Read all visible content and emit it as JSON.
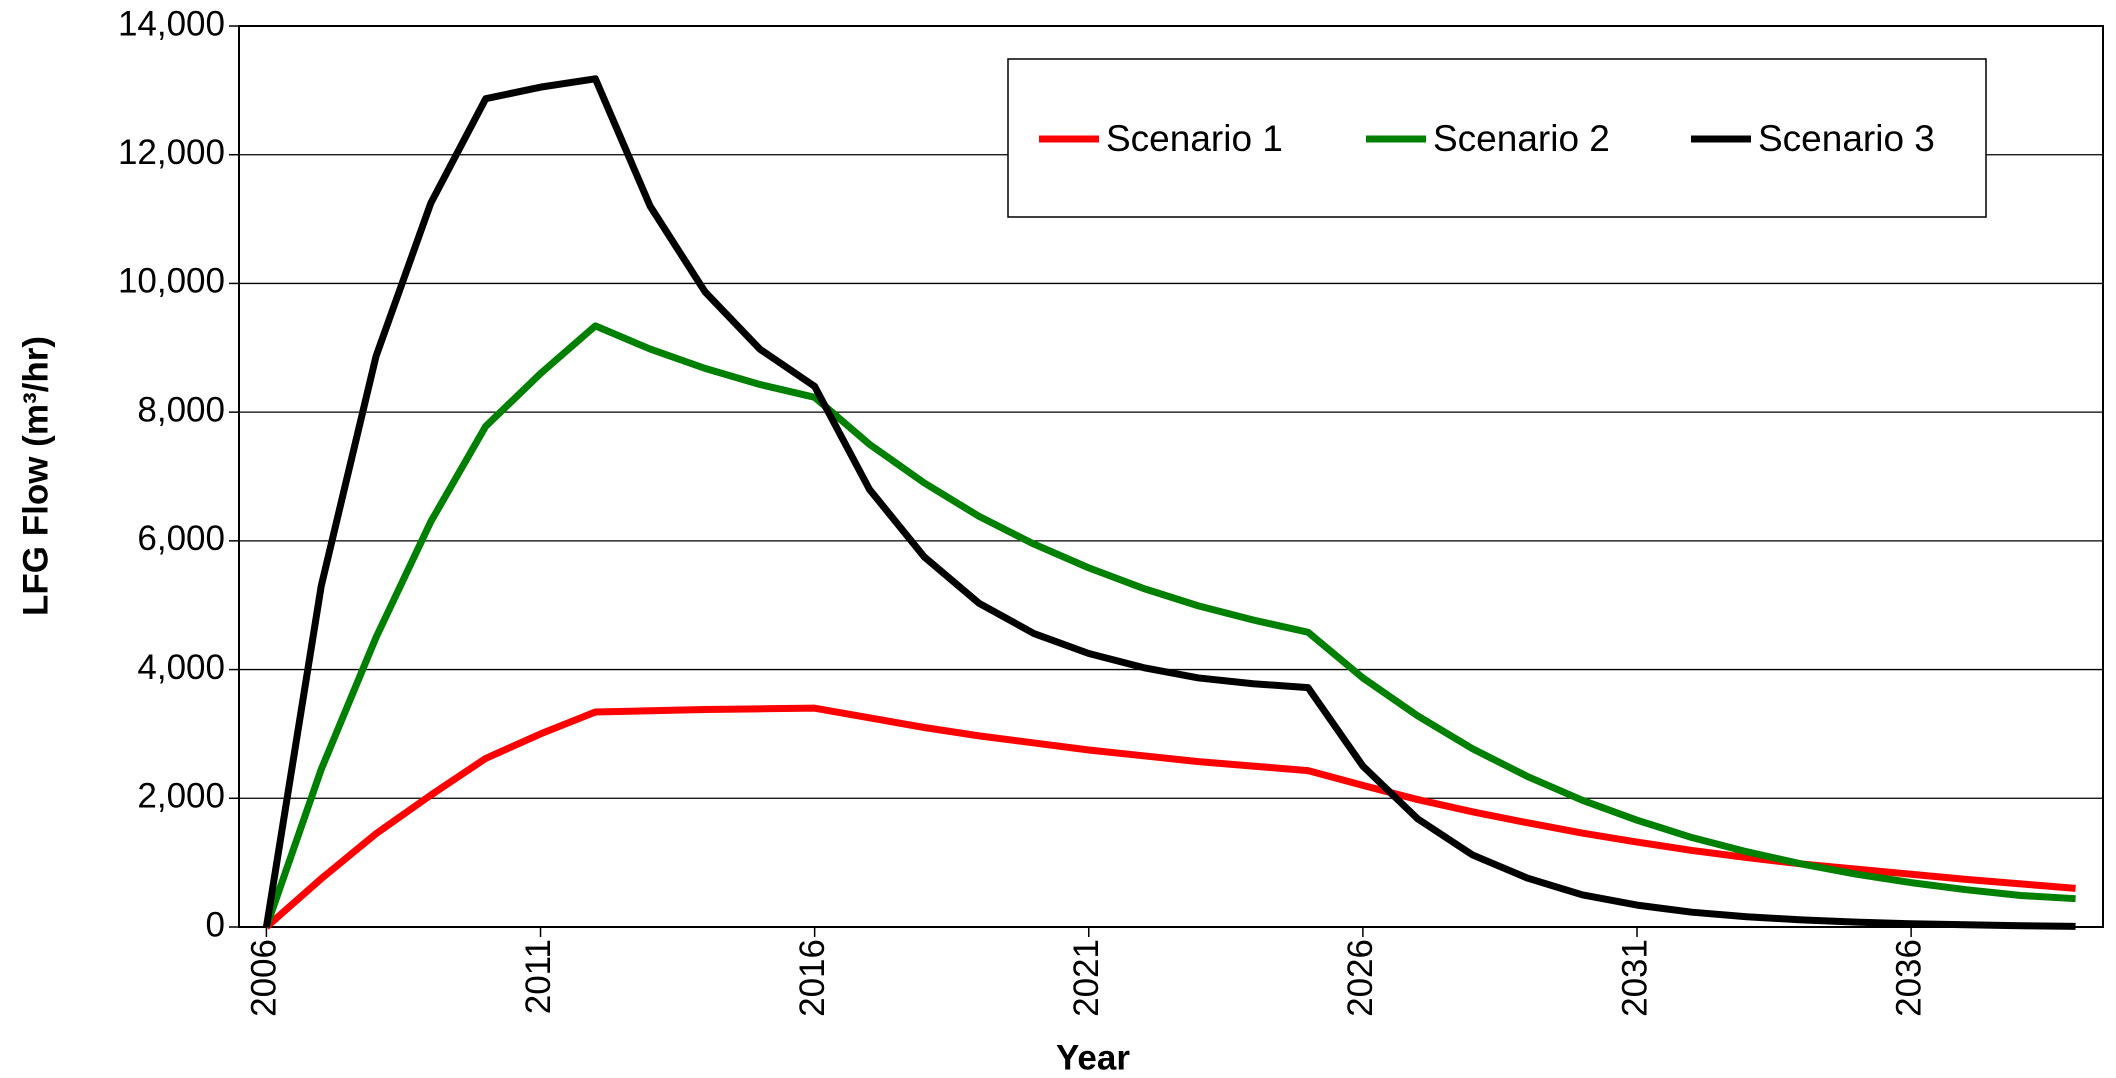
{
  "chart_data": {
    "type": "line",
    "xlabel": "Year",
    "ylabel": "LFG Flow (m³/hr)",
    "x": [
      2006,
      2007,
      2008,
      2009,
      2010,
      2011,
      2012,
      2013,
      2014,
      2015,
      2016,
      2017,
      2018,
      2019,
      2020,
      2021,
      2022,
      2023,
      2024,
      2025,
      2026,
      2027,
      2028,
      2029,
      2030,
      2031,
      2032,
      2033,
      2034,
      2035,
      2036,
      2037,
      2038,
      2039
    ],
    "series": [
      {
        "name": "Scenario 1",
        "color": "#ff0000",
        "values": [
          0,
          750,
          1450,
          2050,
          2620,
          3000,
          3340,
          3360,
          3380,
          3390,
          3400,
          3250,
          3100,
          2970,
          2860,
          2750,
          2660,
          2570,
          2500,
          2430,
          2200,
          1980,
          1790,
          1620,
          1460,
          1320,
          1190,
          1080,
          980,
          900,
          820,
          740,
          670,
          600
        ]
      },
      {
        "name": "Scenario 2",
        "color": "#008000",
        "values": [
          0,
          2450,
          4500,
          6300,
          7780,
          8600,
          9340,
          8980,
          8680,
          8430,
          8230,
          7500,
          6900,
          6380,
          5950,
          5580,
          5260,
          4990,
          4770,
          4580,
          3870,
          3280,
          2770,
          2340,
          1970,
          1660,
          1390,
          1170,
          980,
          820,
          690,
          580,
          490,
          440
        ]
      },
      {
        "name": "Scenario 3",
        "color": "#000000",
        "values": [
          0,
          5300,
          8870,
          11250,
          12870,
          13050,
          13180,
          11200,
          9870,
          8980,
          8400,
          6800,
          5750,
          5030,
          4560,
          4250,
          4030,
          3870,
          3780,
          3720,
          2500,
          1680,
          1120,
          760,
          500,
          340,
          230,
          160,
          110,
          75,
          50,
          35,
          20,
          10
        ]
      }
    ],
    "xlim": [
      2005.5,
      2039.5
    ],
    "xticks": [
      2006,
      2011,
      2016,
      2021,
      2026,
      2031,
      2036
    ],
    "ylim": [
      0,
      14000
    ],
    "yticks": [
      0,
      {
        "value": 2000,
        "label": "2,000"
      },
      {
        "value": 4000,
        "label": "4,000"
      },
      {
        "value": 6000,
        "label": "6,000"
      },
      {
        "value": 8000,
        "label": "8,000"
      },
      {
        "value": 10000,
        "label": "10,000"
      },
      {
        "value": 12000,
        "label": "12,000"
      },
      {
        "value": 14000,
        "label": "14,000"
      }
    ],
    "grid": true,
    "legend": "upper right"
  }
}
